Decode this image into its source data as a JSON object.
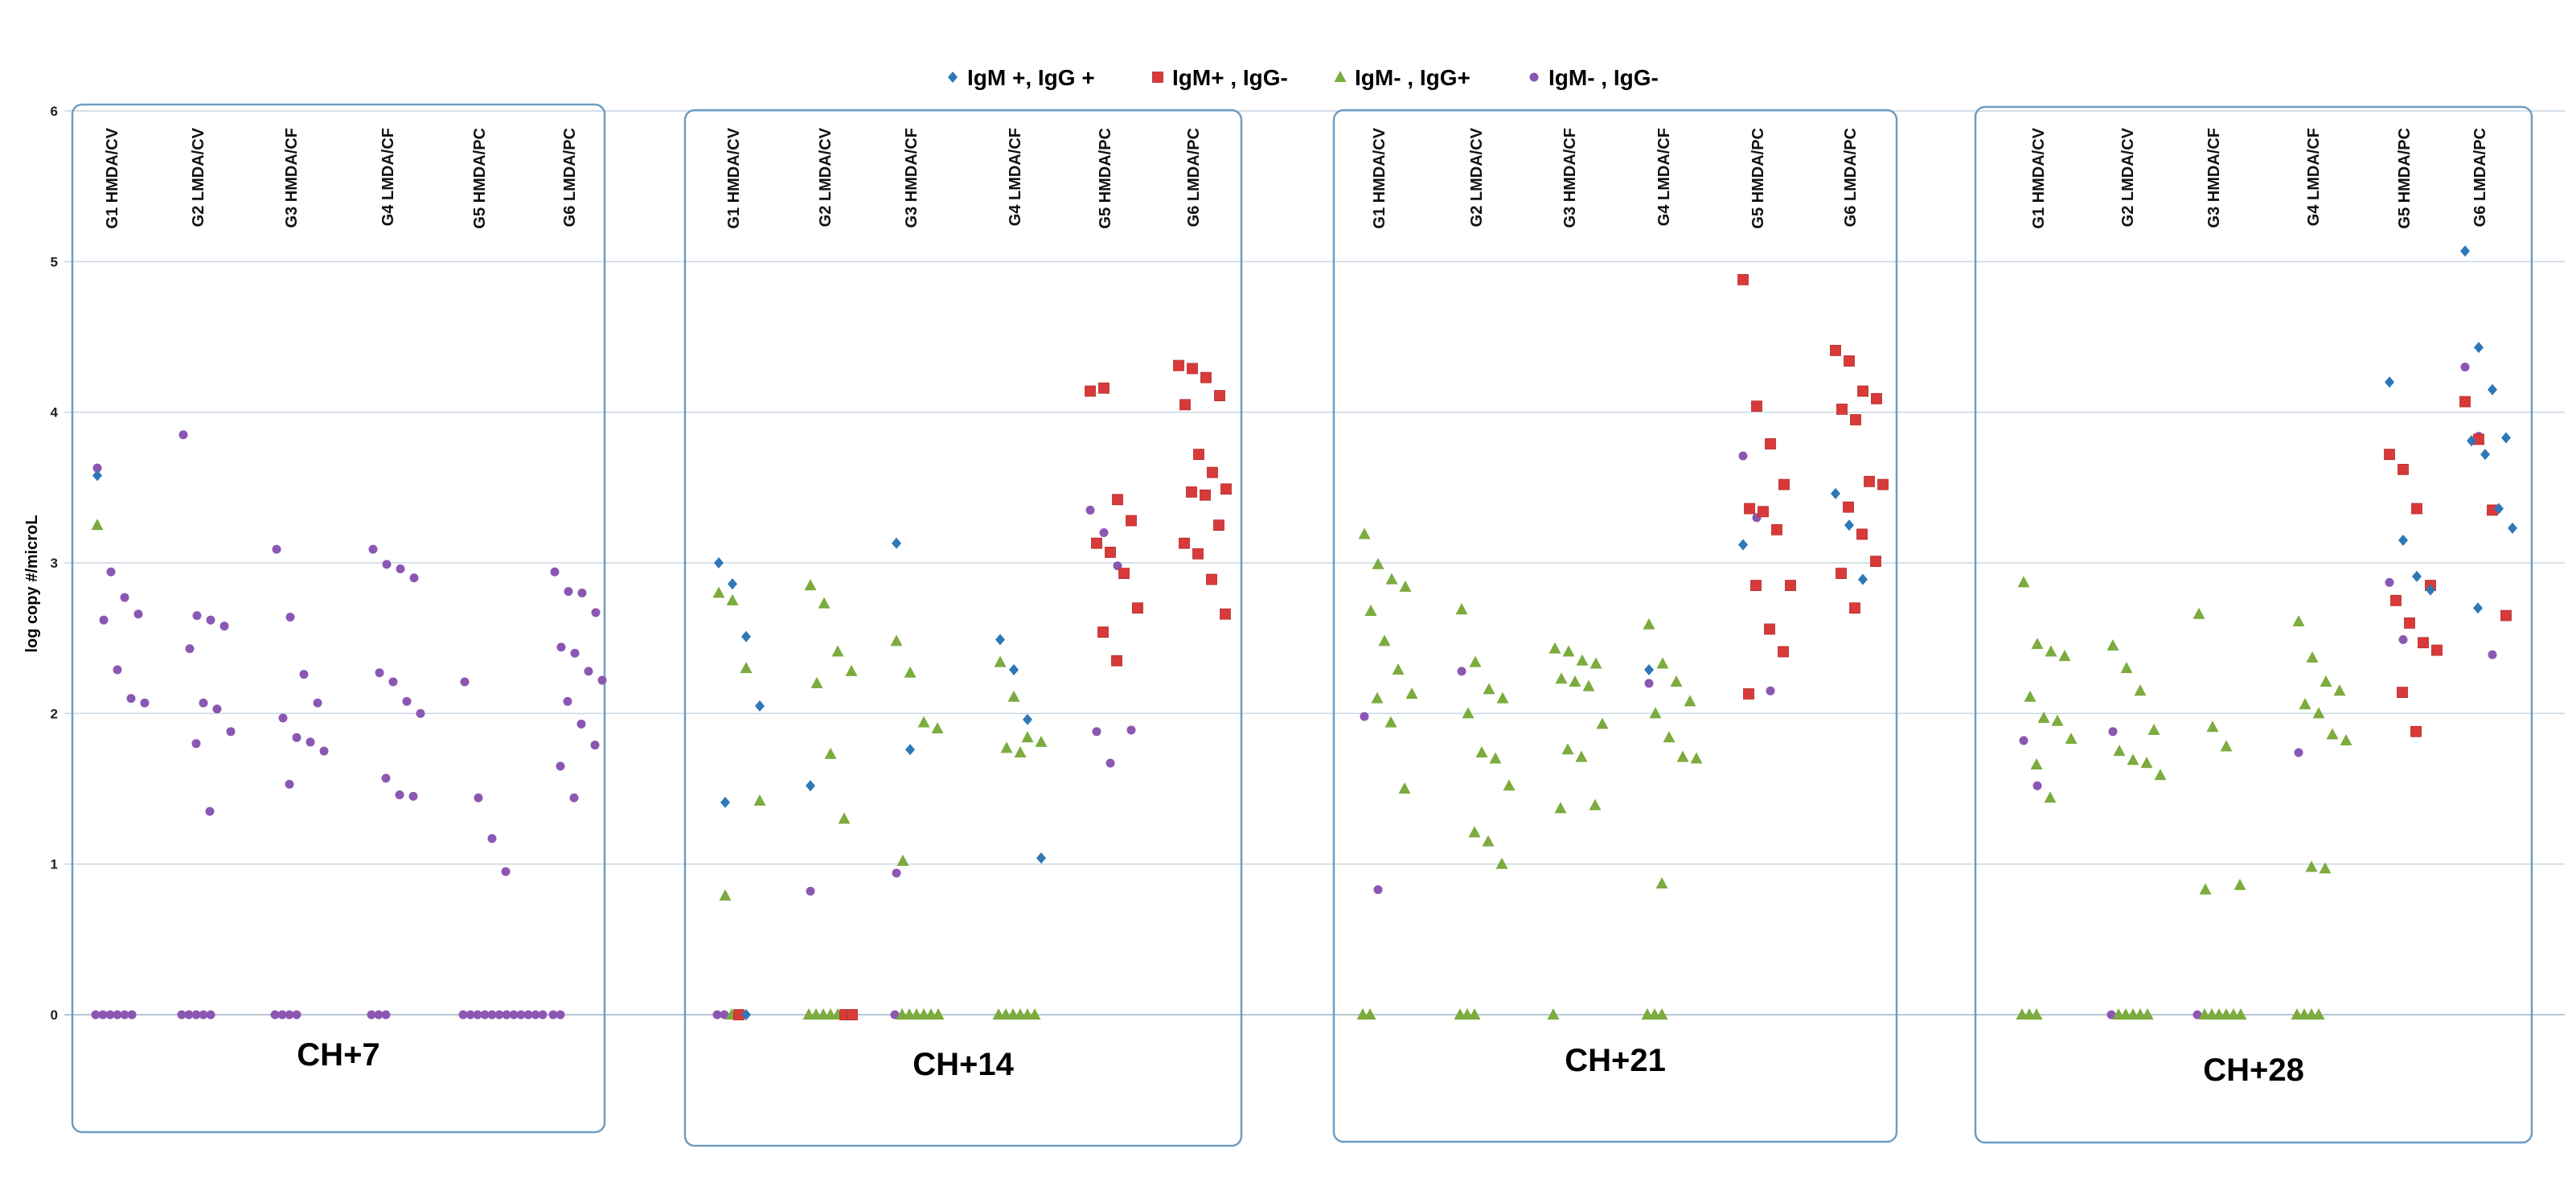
{
  "colors": {
    "igm_pos_igg_pos": "#2E78B7",
    "igm_pos_igg_neg": "#D83A3A",
    "igm_neg_igg_pos": "#7CAB3E",
    "igm_neg_igg_neg": "#8B57B2",
    "panel_border": "#6F9DC2",
    "gridline": "#C9D7E3"
  },
  "chart_data": {
    "type": "scatter",
    "ylabel": "log copy #/microL",
    "ylim": [
      0,
      6
    ],
    "yticks": [
      "0",
      "1",
      "2",
      "3",
      "4",
      "5",
      "6"
    ],
    "legend": [
      {
        "key": "igm_pos_igg_pos",
        "label": "IgM +, IgG +",
        "marker": "diamond"
      },
      {
        "key": "igm_pos_igg_neg",
        "label": "IgM+ , IgG-",
        "marker": "square"
      },
      {
        "key": "igm_neg_igg_pos",
        "label": "IgM- , IgG+",
        "marker": "triangle"
      },
      {
        "key": "igm_neg_igg_neg",
        "label": "IgM- , IgG-",
        "marker": "circle"
      }
    ],
    "groups": [
      "G1 HMDA/CV",
      "G2 LMDA/CV",
      "G3 HMDA/CF",
      "G4 LMDA/CF",
      "G5 HMDA/PC",
      "G6 LMDA/PC"
    ],
    "panels": [
      {
        "label": "CH+7",
        "groups": [
          {
            "igm_pos_igg_pos": [
              3.58
            ],
            "igm_pos_igg_neg": [],
            "igm_neg_igg_pos": [
              3.25
            ],
            "igm_neg_igg_neg": [
              3.63,
              2.94,
              2.77,
              2.66,
              2.62,
              2.29,
              2.1,
              2.07,
              0,
              0,
              0,
              0,
              0,
              0
            ]
          },
          {
            "igm_pos_igg_pos": [],
            "igm_pos_igg_neg": [],
            "igm_neg_igg_pos": [],
            "igm_neg_igg_neg": [
              3.85,
              2.65,
              2.62,
              2.58,
              2.43,
              2.07,
              2.03,
              1.88,
              1.8,
              1.35,
              0,
              0,
              0,
              0,
              0
            ]
          },
          {
            "igm_pos_igg_pos": [],
            "igm_pos_igg_neg": [],
            "igm_neg_igg_pos": [],
            "igm_neg_igg_neg": [
              3.09,
              2.64,
              2.26,
              2.07,
              1.97,
              1.84,
              1.81,
              1.75,
              1.53,
              0,
              0,
              0,
              0
            ]
          },
          {
            "igm_pos_igg_pos": [],
            "igm_pos_igg_neg": [],
            "igm_neg_igg_pos": [],
            "igm_neg_igg_neg": [
              3.09,
              2.99,
              2.96,
              2.9,
              2.27,
              2.21,
              2.08,
              2.0,
              1.57,
              1.46,
              1.45,
              0,
              0,
              0
            ]
          },
          {
            "igm_pos_igg_pos": [],
            "igm_pos_igg_neg": [],
            "igm_neg_igg_pos": [],
            "igm_neg_igg_neg": [
              2.21,
              1.44,
              1.17,
              0.95,
              0,
              0,
              0,
              0,
              0,
              0,
              0,
              0,
              0,
              0,
              0,
              0
            ]
          },
          {
            "igm_pos_igg_pos": [],
            "igm_pos_igg_neg": [],
            "igm_neg_igg_pos": [],
            "igm_neg_igg_neg": [
              2.94,
              2.81,
              2.8,
              2.67,
              2.44,
              2.4,
              2.28,
              2.22,
              2.08,
              1.93,
              1.79,
              1.65,
              1.44,
              0,
              0
            ]
          }
        ]
      },
      {
        "label": "CH+14",
        "groups": [
          {
            "igm_pos_igg_pos": [
              3.0,
              2.86,
              2.51,
              2.05,
              1.41,
              0
            ],
            "igm_pos_igg_neg": [
              0
            ],
            "igm_neg_igg_pos": [
              2.8,
              2.75,
              2.3,
              1.42,
              0.79,
              0
            ],
            "igm_neg_igg_neg": [
              0,
              0
            ]
          },
          {
            "igm_pos_igg_pos": [
              1.52
            ],
            "igm_pos_igg_neg": [
              0,
              0
            ],
            "igm_neg_igg_pos": [
              2.85,
              2.73,
              2.41,
              2.28,
              2.2,
              1.73,
              1.3,
              0,
              0,
              0,
              0,
              0
            ],
            "igm_neg_igg_neg": [
              0.82
            ]
          },
          {
            "igm_pos_igg_pos": [
              3.13,
              1.76
            ],
            "igm_pos_igg_neg": [],
            "igm_neg_igg_pos": [
              2.48,
              2.27,
              1.94,
              1.9,
              1.02,
              0,
              0,
              0,
              0,
              0,
              0
            ],
            "igm_neg_igg_neg": [
              0.94,
              0
            ]
          },
          {
            "igm_pos_igg_pos": [
              2.49,
              2.29,
              1.96,
              1.04
            ],
            "igm_pos_igg_neg": [],
            "igm_neg_igg_pos": [
              2.34,
              2.11,
              1.84,
              1.81,
              1.77,
              1.74,
              0,
              0,
              0,
              0,
              0,
              0
            ],
            "igm_neg_igg_neg": []
          },
          {
            "igm_pos_igg_pos": [],
            "igm_pos_igg_neg": [
              4.14,
              4.16,
              3.42,
              3.28,
              3.13,
              3.07,
              2.93,
              2.7,
              2.54,
              2.35
            ],
            "igm_neg_igg_pos": [],
            "igm_neg_igg_neg": [
              3.35,
              3.2,
              2.98,
              1.89,
              1.88,
              1.67
            ]
          },
          {
            "igm_pos_igg_pos": [],
            "igm_pos_igg_neg": [
              4.31,
              4.29,
              4.23,
              4.11,
              4.05,
              3.72,
              3.6,
              3.49,
              3.47,
              3.45,
              3.25,
              3.13,
              3.06,
              2.89,
              2.66
            ],
            "igm_neg_igg_pos": [],
            "igm_neg_igg_neg": []
          }
        ]
      },
      {
        "label": "CH+21",
        "groups": [
          {
            "igm_pos_igg_pos": [],
            "igm_pos_igg_neg": [],
            "igm_neg_igg_pos": [
              3.19,
              2.99,
              2.89,
              2.84,
              2.68,
              2.48,
              2.29,
              2.13,
              2.1,
              1.94,
              1.5,
              0,
              0
            ],
            "igm_neg_igg_neg": [
              1.98,
              0.83
            ]
          },
          {
            "igm_pos_igg_pos": [],
            "igm_pos_igg_neg": [],
            "igm_neg_igg_pos": [
              2.69,
              2.34,
              2.16,
              2.1,
              2.0,
              1.74,
              1.7,
              1.52,
              1.21,
              1.15,
              1.0,
              0,
              0,
              0
            ],
            "igm_neg_igg_neg": [
              2.28
            ]
          },
          {
            "igm_pos_igg_pos": [],
            "igm_pos_igg_neg": [],
            "igm_neg_igg_pos": [
              2.43,
              2.41,
              2.35,
              2.33,
              2.23,
              2.21,
              2.18,
              1.93,
              1.76,
              1.71,
              1.39,
              1.37,
              0
            ],
            "igm_neg_igg_neg": []
          },
          {
            "igm_pos_igg_pos": [
              2.29
            ],
            "igm_pos_igg_neg": [],
            "igm_neg_igg_pos": [
              2.59,
              2.33,
              2.21,
              2.08,
              2.0,
              1.84,
              1.71,
              1.7,
              0.87,
              0,
              0,
              0
            ],
            "igm_neg_igg_neg": [
              2.2
            ]
          },
          {
            "igm_pos_igg_pos": [
              3.12
            ],
            "igm_pos_igg_neg": [
              4.88,
              4.04,
              3.79,
              3.52,
              3.36,
              3.34,
              3.22,
              2.85,
              2.85,
              2.56,
              2.41,
              2.13
            ],
            "igm_neg_igg_pos": [],
            "igm_neg_igg_neg": [
              3.71,
              3.3,
              2.15
            ]
          },
          {
            "igm_pos_igg_pos": [
              3.46,
              3.25,
              2.89
            ],
            "igm_pos_igg_neg": [
              4.41,
              4.34,
              4.14,
              4.09,
              4.02,
              3.95,
              3.54,
              3.52,
              3.37,
              3.19,
              3.01,
              2.93,
              2.7
            ],
            "igm_neg_igg_pos": [],
            "igm_neg_igg_neg": []
          }
        ]
      },
      {
        "label": "CH+28",
        "groups": [
          {
            "igm_pos_igg_pos": [],
            "igm_pos_igg_neg": [],
            "igm_neg_igg_pos": [
              2.87,
              2.46,
              2.41,
              2.38,
              2.11,
              1.97,
              1.95,
              1.83,
              1.66,
              1.44,
              0,
              0,
              0
            ],
            "igm_neg_igg_neg": [
              1.82,
              1.52
            ]
          },
          {
            "igm_pos_igg_pos": [],
            "igm_pos_igg_neg": [],
            "igm_neg_igg_pos": [
              2.45,
              2.3,
              2.15,
              1.89,
              1.75,
              1.69,
              1.67,
              1.59,
              0,
              0,
              0,
              0,
              0
            ],
            "igm_neg_igg_neg": [
              1.88,
              0
            ]
          },
          {
            "igm_pos_igg_pos": [],
            "igm_pos_igg_neg": [],
            "igm_neg_igg_pos": [
              2.66,
              1.91,
              1.78,
              0.86,
              0.83,
              0,
              0,
              0,
              0,
              0,
              0
            ],
            "igm_neg_igg_neg": [
              0
            ]
          },
          {
            "igm_pos_igg_pos": [],
            "igm_pos_igg_neg": [],
            "igm_neg_igg_pos": [
              2.61,
              2.37,
              2.21,
              2.15,
              2.06,
              2.0,
              1.86,
              1.82,
              0.98,
              0.97,
              0,
              0,
              0,
              0
            ],
            "igm_neg_igg_neg": [
              1.74
            ]
          },
          {
            "igm_pos_igg_pos": [
              4.2,
              3.15,
              2.91,
              2.82
            ],
            "igm_pos_igg_neg": [
              3.72,
              3.62,
              3.36,
              2.85,
              2.75,
              2.6,
              2.47,
              2.42,
              2.14,
              1.88
            ],
            "igm_neg_igg_pos": [],
            "igm_neg_igg_neg": [
              2.87,
              2.49
            ]
          },
          {
            "igm_pos_igg_pos": [
              5.07,
              4.43,
              4.15,
              3.83,
              3.81,
              3.72,
              3.36,
              3.23,
              2.7
            ],
            "igm_pos_igg_neg": [
              4.07,
              3.82,
              3.35,
              2.65
            ],
            "igm_neg_igg_pos": [],
            "igm_neg_igg_neg": [
              4.3,
              3.84,
              2.39
            ]
          }
        ]
      }
    ]
  }
}
